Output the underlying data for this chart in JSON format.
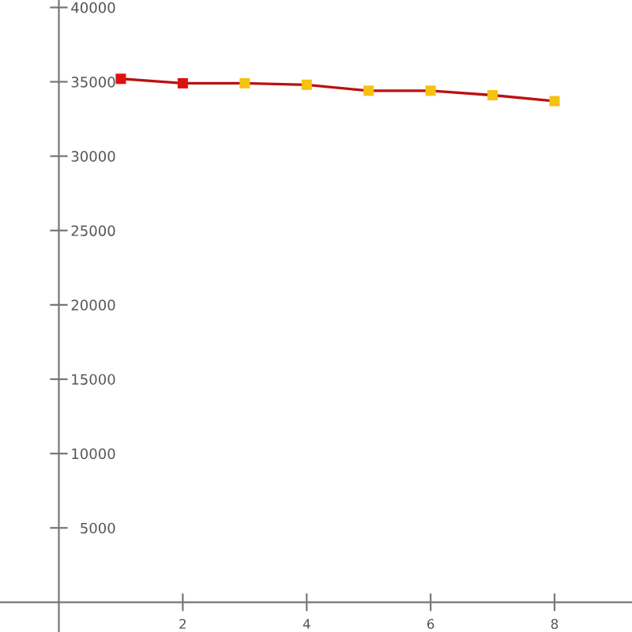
{
  "chart_data": {
    "type": "line",
    "x": [
      1,
      2,
      3,
      4,
      5,
      6,
      7,
      8
    ],
    "series": [
      {
        "color": "#bb1111",
        "colors": [
          "#dd1111",
          "#dd1111",
          "#f5c211",
          "#f5c211",
          "#f5c211",
          "#f5c211",
          "#f5c211",
          "#f5c211"
        ],
        "values": [
          35200,
          34900,
          34900,
          34800,
          34400,
          34400,
          34100,
          33700
        ]
      }
    ],
    "xlim": [
      -0.95,
      9.25
    ],
    "ylim": [
      -2000,
      40500
    ],
    "xticks": [
      2,
      4,
      6,
      8
    ],
    "yticks": [
      5000,
      10000,
      15000,
      20000,
      25000,
      30000,
      35000,
      40000
    ],
    "marker": "square",
    "line_style": "solid",
    "grid": false,
    "legend": false
  }
}
